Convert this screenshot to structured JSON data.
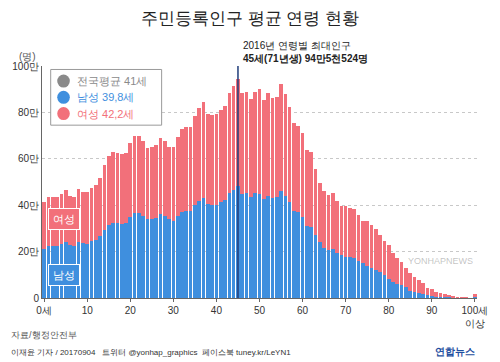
{
  "chart_data": {
    "type": "bar",
    "title": "주민등록인구 평균 연령 현황",
    "ylabel": "(명)",
    "stacked": true,
    "grid": true,
    "categories": [
      "0세",
      null,
      null,
      null,
      null,
      null,
      null,
      null,
      null,
      null,
      "10",
      null,
      null,
      null,
      null,
      null,
      null,
      null,
      null,
      null,
      "20",
      null,
      null,
      null,
      null,
      null,
      null,
      null,
      null,
      null,
      "30",
      null,
      null,
      null,
      null,
      null,
      null,
      null,
      null,
      null,
      "40",
      null,
      null,
      null,
      null,
      null,
      null,
      null,
      null,
      null,
      "50",
      null,
      null,
      null,
      null,
      null,
      null,
      null,
      null,
      null,
      "60",
      null,
      null,
      null,
      null,
      null,
      null,
      null,
      null,
      null,
      "70",
      null,
      null,
      null,
      null,
      null,
      null,
      null,
      null,
      null,
      "80",
      null,
      null,
      null,
      null,
      null,
      null,
      null,
      null,
      null,
      "90",
      null,
      null,
      null,
      null,
      null,
      null,
      null,
      null,
      null,
      "100세\n이상"
    ],
    "series": [
      {
        "name": "남성",
        "color": "#3f8fde",
        "values": [
          213000,
          225000,
          224000,
          225000,
          231000,
          241000,
          227000,
          225000,
          241000,
          236000,
          234000,
          244000,
          250000,
          266000,
          295000,
          316000,
          325000,
          322000,
          319000,
          323000,
          351000,
          366000,
          366000,
          355000,
          339000,
          342000,
          345000,
          361000,
          355000,
          342000,
          333000,
          353000,
          371000,
          375000,
          376000,
          400000,
          418000,
          432000,
          404000,
          402000,
          403000,
          414000,
          422000,
          451000,
          465000,
          482000,
          450000,
          454000,
          437000,
          453000,
          450000,
          426000,
          441000,
          432000,
          434000,
          461000,
          440000,
          412000,
          377000,
          372000,
          349000,
          312000,
          308000,
          271000,
          243000,
          216000,
          208000,
          212000,
          196000,
          187000,
          178000,
          175000,
          172000,
          161000,
          149000,
          137000,
          129000,
          122000,
          112000,
          100000,
          81000,
          69000,
          61000,
          55000,
          46000,
          30000,
          25000,
          22000,
          18000,
          13000,
          9000,
          6000,
          5000,
          4000,
          3000,
          2000,
          1000,
          1000,
          1000,
          1000,
          3000
        ]
      },
      {
        "name": "여성",
        "color": "#f2707a",
        "values": [
          200000,
          211000,
          211000,
          211000,
          217000,
          226000,
          214000,
          212000,
          227000,
          223000,
          221000,
          229000,
          236000,
          251000,
          277000,
          297000,
          306000,
          304000,
          300000,
          304000,
          317000,
          332000,
          332000,
          321000,
          307000,
          310000,
          313000,
          327000,
          321000,
          310000,
          320000,
          340000,
          356000,
          361000,
          361000,
          385000,
          402000,
          415000,
          388000,
          386000,
          388000,
          397000,
          406000,
          434000,
          447000,
          463524,
          432000,
          436000,
          419000,
          436000,
          450000,
          426000,
          441000,
          431000,
          434000,
          461000,
          440000,
          411000,
          377000,
          371000,
          363000,
          324000,
          321000,
          283000,
          253000,
          244000,
          234000,
          240000,
          222000,
          211000,
          217000,
          213000,
          211000,
          196000,
          181000,
          196000,
          186000,
          175000,
          161000,
          145000,
          149000,
          127000,
          112000,
          102000,
          85000,
          78000,
          65000,
          56000,
          45000,
          32000,
          28000,
          21000,
          17000,
          12000,
          8000,
          6000,
          5000,
          3000,
          2000,
          1000,
          14000
        ]
      }
    ],
    "ylim": [
      0,
      1000000
    ],
    "yticks": [
      0,
      {
        "value": 200000,
        "label": "20만"
      },
      {
        "value": 400000,
        "label": "40만"
      },
      {
        "value": 600000,
        "label": "60만"
      },
      {
        "value": 800000,
        "label": "80만"
      },
      {
        "value": 1000000,
        "label": "100만"
      }
    ],
    "average_box": [
      {
        "text": "전국평균 41세",
        "color": "#8a8a8a"
      },
      {
        "text": "남성 39,8세",
        "color": "#3f8fde"
      },
      {
        "text": "여성 42,2세",
        "color": "#f2707a"
      }
    ],
    "peak_note": {
      "x": 45,
      "text": [
        "2016년 연령별 최대인구",
        "45세(71년생) 94만5천524명"
      ]
    },
    "source": "자료/행정안전부",
    "credit": "이재윤 기자 / 20170904   트위터 @yonhap_graphics  페이스북 tuney.kr/LeYN1",
    "logo": "연합뉴스",
    "watermark": "YONHAPNEWS"
  }
}
